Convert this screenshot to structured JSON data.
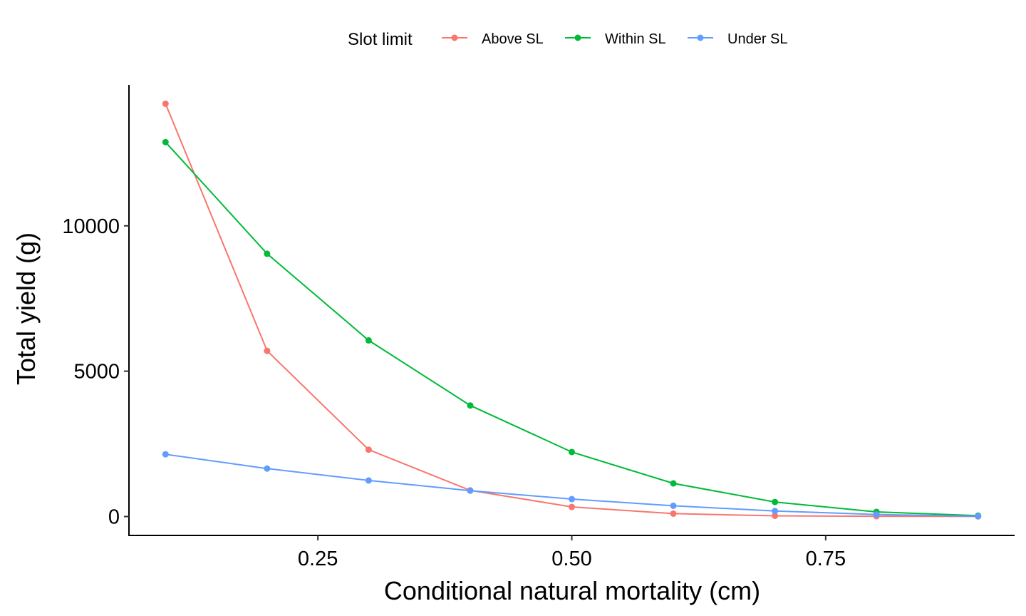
{
  "chart_data": {
    "type": "line",
    "title": "",
    "xlabel": "Conditional natural mortality (cm)",
    "ylabel": "Total yield (g)",
    "xlim": [
      0.064,
      0.936
    ],
    "ylim": [
      -650,
      14850
    ],
    "x_ticks": [
      0.25,
      0.5,
      0.75
    ],
    "x_tick_labels": [
      "0.25",
      "0.50",
      "0.75"
    ],
    "y_ticks": [
      0,
      5000,
      10000
    ],
    "y_tick_labels": [
      "0",
      "5000",
      "10000"
    ],
    "grid": false,
    "legend": {
      "title": "Slot limit",
      "position": "top"
    },
    "x": [
      0.1,
      0.2,
      0.3,
      0.4,
      0.5,
      0.6,
      0.7,
      0.8,
      0.9
    ],
    "series": [
      {
        "name": "Above SL",
        "color": "#F8766D",
        "values": [
          14200,
          5700,
          2300,
          900,
          330,
          100,
          25,
          10,
          3
        ]
      },
      {
        "name": "Within SL",
        "color": "#00BA38",
        "values": [
          12880,
          9040,
          6060,
          3820,
          2220,
          1140,
          500,
          160,
          30
        ]
      },
      {
        "name": "Under SL",
        "color": "#619CFF",
        "values": [
          2140,
          1650,
          1240,
          890,
          600,
          370,
          190,
          70,
          10
        ]
      }
    ]
  }
}
